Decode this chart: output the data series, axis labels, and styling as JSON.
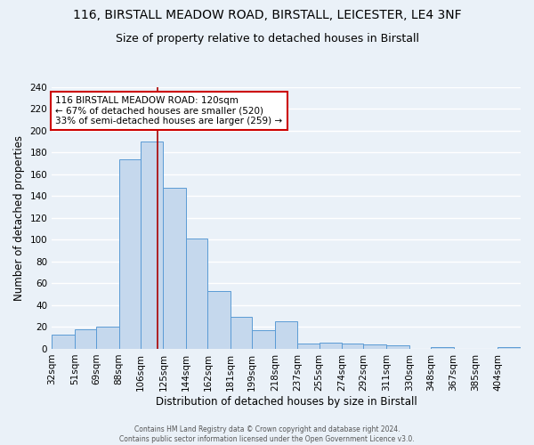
{
  "title": "116, BIRSTALL MEADOW ROAD, BIRSTALL, LEICESTER, LE4 3NF",
  "subtitle": "Size of property relative to detached houses in Birstall",
  "xlabel": "Distribution of detached houses by size in Birstall",
  "ylabel": "Number of detached properties",
  "bin_labels": [
    "32sqm",
    "51sqm",
    "69sqm",
    "88sqm",
    "106sqm",
    "125sqm",
    "144sqm",
    "162sqm",
    "181sqm",
    "199sqm",
    "218sqm",
    "237sqm",
    "255sqm",
    "274sqm",
    "292sqm",
    "311sqm",
    "330sqm",
    "348sqm",
    "367sqm",
    "385sqm",
    "404sqm"
  ],
  "bin_edges": [
    32,
    51,
    69,
    88,
    106,
    125,
    144,
    162,
    181,
    199,
    218,
    237,
    255,
    274,
    292,
    311,
    330,
    348,
    367,
    385,
    404
  ],
  "bar_heights": [
    13,
    18,
    20,
    174,
    190,
    148,
    101,
    53,
    29,
    17,
    25,
    5,
    6,
    5,
    4,
    3,
    0,
    2,
    0,
    0,
    2
  ],
  "bar_color": "#c5d8ed",
  "bar_edge_color": "#5b9bd5",
  "vline_x": 120,
  "vline_color": "#aa0000",
  "ylim": [
    0,
    240
  ],
  "yticks": [
    0,
    20,
    40,
    60,
    80,
    100,
    120,
    140,
    160,
    180,
    200,
    220,
    240
  ],
  "annotation_title": "116 BIRSTALL MEADOW ROAD: 120sqm",
  "annotation_line1": "← 67% of detached houses are smaller (520)",
  "annotation_line2": "33% of semi-detached houses are larger (259) →",
  "annotation_box_color": "#ffffff",
  "annotation_box_edge": "#cc0000",
  "footer1": "Contains HM Land Registry data © Crown copyright and database right 2024.",
  "footer2": "Contains public sector information licensed under the Open Government Licence v3.0.",
  "bg_color": "#eaf1f8",
  "grid_color": "#ffffff",
  "title_fontsize": 10,
  "subtitle_fontsize": 9,
  "axis_label_fontsize": 8.5,
  "tick_fontsize": 7.5,
  "annotation_fontsize": 7.5
}
